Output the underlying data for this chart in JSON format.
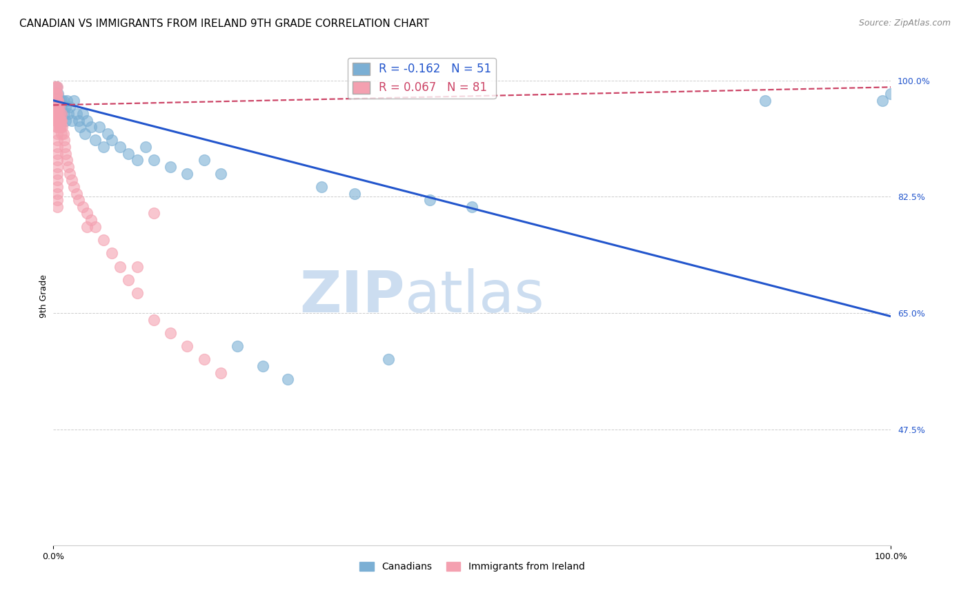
{
  "title": "CANADIAN VS IMMIGRANTS FROM IRELAND 9TH GRADE CORRELATION CHART",
  "source": "Source: ZipAtlas.com",
  "ylabel": "9th Grade",
  "xlim": [
    0.0,
    1.0
  ],
  "ylim": [
    0.3,
    1.05
  ],
  "yticks": [
    0.475,
    0.65,
    0.825,
    1.0
  ],
  "ytick_labels": [
    "47.5%",
    "65.0%",
    "82.5%",
    "100.0%"
  ],
  "grid_color": "#cccccc",
  "background_color": "#ffffff",
  "blue_color": "#7bafd4",
  "pink_color": "#f4a0b0",
  "blue_line_color": "#2255cc",
  "pink_line_color": "#cc4466",
  "legend_R_blue": "-0.162",
  "legend_N_blue": "51",
  "legend_R_pink": "0.067",
  "legend_N_pink": "81",
  "canadians_x": [
    0.002,
    0.003,
    0.004,
    0.005,
    0.006,
    0.007,
    0.008,
    0.009,
    0.01,
    0.01,
    0.012,
    0.013,
    0.015,
    0.015,
    0.016,
    0.018,
    0.02,
    0.022,
    0.025,
    0.028,
    0.03,
    0.032,
    0.035,
    0.038,
    0.04,
    0.045,
    0.05,
    0.055,
    0.06,
    0.065,
    0.07,
    0.08,
    0.09,
    0.1,
    0.11,
    0.12,
    0.14,
    0.16,
    0.18,
    0.2,
    0.22,
    0.25,
    0.28,
    0.32,
    0.36,
    0.4,
    0.45,
    0.5,
    0.85,
    0.99,
    1.0
  ],
  "canadians_y": [
    0.98,
    0.97,
    0.99,
    0.96,
    0.98,
    0.97,
    0.96,
    0.95,
    0.97,
    0.96,
    0.97,
    0.95,
    0.96,
    0.94,
    0.97,
    0.95,
    0.96,
    0.94,
    0.97,
    0.95,
    0.94,
    0.93,
    0.95,
    0.92,
    0.94,
    0.93,
    0.91,
    0.93,
    0.9,
    0.92,
    0.91,
    0.9,
    0.89,
    0.88,
    0.9,
    0.88,
    0.87,
    0.86,
    0.88,
    0.86,
    0.6,
    0.57,
    0.55,
    0.84,
    0.83,
    0.58,
    0.82,
    0.81,
    0.97,
    0.97,
    0.98
  ],
  "ireland_x": [
    0.002,
    0.002,
    0.002,
    0.002,
    0.002,
    0.003,
    0.003,
    0.003,
    0.003,
    0.003,
    0.003,
    0.004,
    0.004,
    0.004,
    0.004,
    0.004,
    0.004,
    0.005,
    0.005,
    0.005,
    0.005,
    0.005,
    0.005,
    0.005,
    0.005,
    0.005,
    0.005,
    0.005,
    0.006,
    0.006,
    0.006,
    0.006,
    0.007,
    0.007,
    0.007,
    0.007,
    0.008,
    0.008,
    0.008,
    0.009,
    0.009,
    0.01,
    0.01,
    0.01,
    0.011,
    0.012,
    0.013,
    0.014,
    0.015,
    0.016,
    0.018,
    0.02,
    0.022,
    0.025,
    0.028,
    0.03,
    0.035,
    0.04,
    0.045,
    0.05,
    0.06,
    0.07,
    0.08,
    0.09,
    0.1,
    0.12,
    0.14,
    0.16,
    0.18,
    0.2,
    0.04,
    0.12,
    0.1,
    0.005,
    0.005,
    0.005,
    0.005,
    0.005,
    0.005,
    0.005,
    0.005
  ],
  "ireland_y": [
    0.99,
    0.98,
    0.97,
    0.97,
    0.96,
    0.99,
    0.98,
    0.97,
    0.96,
    0.95,
    0.94,
    0.98,
    0.97,
    0.96,
    0.95,
    0.94,
    0.93,
    0.99,
    0.98,
    0.97,
    0.96,
    0.95,
    0.94,
    0.93,
    0.92,
    0.91,
    0.9,
    0.89,
    0.97,
    0.96,
    0.95,
    0.94,
    0.96,
    0.95,
    0.94,
    0.93,
    0.95,
    0.94,
    0.93,
    0.94,
    0.93,
    0.95,
    0.94,
    0.92,
    0.93,
    0.92,
    0.91,
    0.9,
    0.89,
    0.88,
    0.87,
    0.86,
    0.85,
    0.84,
    0.83,
    0.82,
    0.81,
    0.8,
    0.79,
    0.78,
    0.76,
    0.74,
    0.72,
    0.7,
    0.68,
    0.64,
    0.62,
    0.6,
    0.58,
    0.56,
    0.78,
    0.8,
    0.72,
    0.88,
    0.87,
    0.86,
    0.85,
    0.84,
    0.83,
    0.82,
    0.81
  ],
  "blue_line_x": [
    0.0,
    1.0
  ],
  "blue_line_y": [
    0.97,
    0.645
  ],
  "pink_line_x": [
    0.0,
    1.0
  ],
  "pink_line_y": [
    0.963,
    0.99
  ],
  "watermark_zip": "ZIP",
  "watermark_atlas": "atlas",
  "watermark_color": "#ccddf0",
  "title_fontsize": 11,
  "tick_fontsize": 9,
  "source_fontsize": 9
}
